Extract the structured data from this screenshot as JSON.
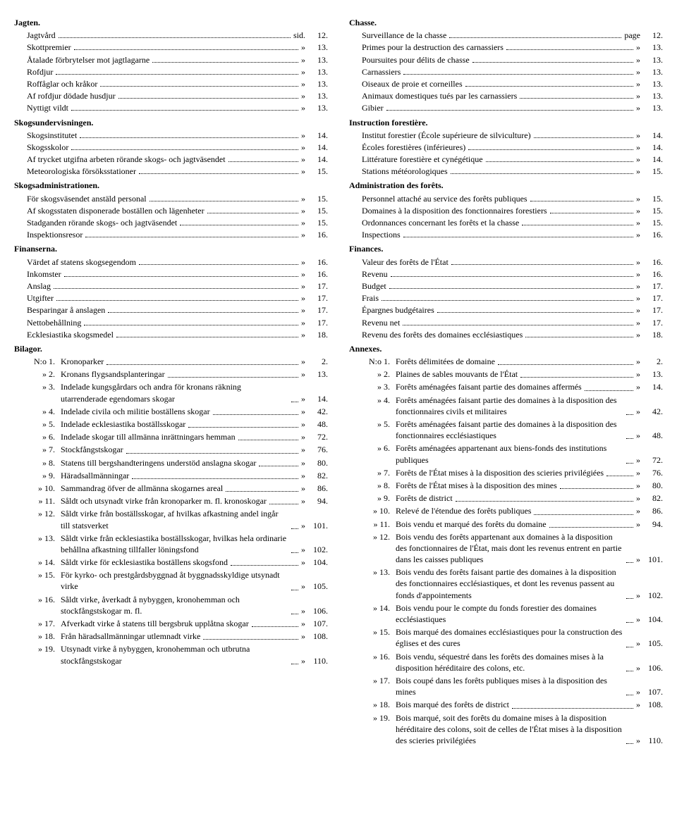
{
  "left": {
    "sections": [
      {
        "type": "heading",
        "text": "Jagten."
      },
      {
        "type": "entry",
        "indent": 1,
        "label": "Jagtvård",
        "unit": "sid.",
        "page": "12."
      },
      {
        "type": "entry",
        "indent": 1,
        "label": "Skottpremier",
        "unit": "»",
        "page": "13."
      },
      {
        "type": "entry",
        "indent": 1,
        "label": "Åtalade förbrytelser mot jagtlagarne",
        "unit": "»",
        "page": "13."
      },
      {
        "type": "entry",
        "indent": 1,
        "label": "Rofdjur",
        "unit": "»",
        "page": "13."
      },
      {
        "type": "entry",
        "indent": 1,
        "label": "Roffåglar och kråkor",
        "unit": "»",
        "page": "13."
      },
      {
        "type": "entry",
        "indent": 1,
        "label": "Af rofdjur dödade husdjur",
        "unit": "»",
        "page": "13."
      },
      {
        "type": "entry",
        "indent": 1,
        "label": "Nyttigt vildt",
        "unit": "»",
        "page": "13."
      },
      {
        "type": "heading",
        "text": "Skogsundervisningen."
      },
      {
        "type": "entry",
        "indent": 1,
        "label": "Skogsinstitutet",
        "unit": "»",
        "page": "14."
      },
      {
        "type": "entry",
        "indent": 1,
        "label": "Skogsskolor",
        "unit": "»",
        "page": "14."
      },
      {
        "type": "entry",
        "indent": 1,
        "label": "Af trycket utgifna arbeten rörande skogs- och jagtväsendet",
        "unit": "»",
        "page": "14."
      },
      {
        "type": "entry",
        "indent": 1,
        "label": "Meteorologiska försöksstationer",
        "unit": "»",
        "page": "15."
      },
      {
        "type": "heading",
        "text": "Skogsadministrationen."
      },
      {
        "type": "entry",
        "indent": 1,
        "label": "För skogsväsendet anstäld personal",
        "unit": "»",
        "page": "15."
      },
      {
        "type": "entry",
        "indent": 1,
        "label": "Af skogsstaten disponerade boställen och lägenheter",
        "unit": "»",
        "page": "15."
      },
      {
        "type": "entry",
        "indent": 1,
        "label": "Stadganden rörande skogs- och jagtväsendet",
        "unit": "»",
        "page": "15."
      },
      {
        "type": "entry",
        "indent": 1,
        "label": "Inspektionsresor",
        "unit": "»",
        "page": "16."
      },
      {
        "type": "heading",
        "text": "Finanserna."
      },
      {
        "type": "entry",
        "indent": 1,
        "label": "Värdet af statens skogsegendom",
        "unit": "»",
        "page": "16."
      },
      {
        "type": "entry",
        "indent": 1,
        "label": "Inkomster",
        "unit": "»",
        "page": "16."
      },
      {
        "type": "entry",
        "indent": 1,
        "label": "Anslag",
        "unit": "»",
        "page": "17."
      },
      {
        "type": "entry",
        "indent": 1,
        "label": "Utgifter",
        "unit": "»",
        "page": "17."
      },
      {
        "type": "entry",
        "indent": 1,
        "label": "Besparingar å anslagen",
        "unit": "»",
        "page": "17."
      },
      {
        "type": "entry",
        "indent": 1,
        "label": "Nettobehållning",
        "unit": "»",
        "page": "17."
      },
      {
        "type": "entry",
        "indent": 1,
        "label": "Ecklesiastika skogsmedel",
        "unit": "»",
        "page": "18."
      }
    ],
    "bilagor_heading": "Bilagor.",
    "bilagor": [
      {
        "num": "N:o 1.",
        "text": "Kronoparker",
        "unit": "»",
        "page": "2."
      },
      {
        "num": "» 2.",
        "text": "Kronans flygsandsplanteringar",
        "unit": "»",
        "page": "13."
      },
      {
        "num": "» 3.",
        "text": "Indelade kungsgårdars och andra för kronans räkning utarrenderade egendomars skogar",
        "unit": "»",
        "page": "14."
      },
      {
        "num": "» 4.",
        "text": "Indelade civila och militie boställens skogar",
        "unit": "»",
        "page": "42."
      },
      {
        "num": "» 5.",
        "text": "Indelade ecklesiastika boställsskogar",
        "unit": "»",
        "page": "48."
      },
      {
        "num": "» 6.",
        "text": "Indelade skogar till allmänna inrättningars hemman",
        "unit": "»",
        "page": "72."
      },
      {
        "num": "» 7.",
        "text": "Stockfångstskogar",
        "unit": "»",
        "page": "76."
      },
      {
        "num": "» 8.",
        "text": "Statens till bergshandteringens understöd anslagna skogar",
        "unit": "»",
        "page": "80."
      },
      {
        "num": "» 9.",
        "text": "Häradsallmänningar",
        "unit": "»",
        "page": "82."
      },
      {
        "num": "» 10.",
        "text": "Sammandrag öfver de allmänna skogarnes areal",
        "unit": "»",
        "page": "86."
      },
      {
        "num": "» 11.",
        "text": "Såldt och utsynadt virke från kronoparker m. fl. kronoskogar",
        "unit": "»",
        "page": "94."
      },
      {
        "num": "» 12.",
        "text": "Såldt virke från boställsskogar, af hvilkas afkastning andel ingår till statsverket",
        "unit": "»",
        "page": "101."
      },
      {
        "num": "» 13.",
        "text": "Såldt virke från ecklesiastika boställsskogar, hvilkas hela ordinarie behållna afkastning tillfaller löningsfond",
        "unit": "»",
        "page": "102."
      },
      {
        "num": "» 14.",
        "text": "Såldt virke för ecklesiastika boställens skogsfond",
        "unit": "»",
        "page": "104."
      },
      {
        "num": "» 15.",
        "text": "För kyrko- och prestgårdsbyggnad åt byggnadsskyldige utsynadt virke",
        "unit": "»",
        "page": "105."
      },
      {
        "num": "» 16.",
        "text": "Såldt virke, åverkadt å nybyggen, kronohemman och stockfångstskogar m. fl.",
        "unit": "»",
        "page": "106."
      },
      {
        "num": "» 17.",
        "text": "Afverkadt virke å statens till bergsbruk upplåtna skogar",
        "unit": "»",
        "page": "107."
      },
      {
        "num": "» 18.",
        "text": "Från häradsallmänningar utlemnadt virke",
        "unit": "»",
        "page": "108."
      },
      {
        "num": "» 19.",
        "text": "Utsynadt virke å nybyggen, kronohemman och utbrutna stockfångstskogar",
        "unit": "»",
        "page": "110."
      }
    ]
  },
  "right": {
    "sections": [
      {
        "type": "heading",
        "text": "Chasse."
      },
      {
        "type": "entry",
        "indent": 1,
        "label": "Surveillance de la chasse",
        "unit": "page",
        "page": "12."
      },
      {
        "type": "entry",
        "indent": 1,
        "label": "Primes pour la destruction des carnassiers",
        "unit": "»",
        "page": "13."
      },
      {
        "type": "entry",
        "indent": 1,
        "label": "Poursuites pour délits de chasse",
        "unit": "»",
        "page": "13."
      },
      {
        "type": "entry",
        "indent": 1,
        "label": "Carnassiers",
        "unit": "»",
        "page": "13."
      },
      {
        "type": "entry",
        "indent": 1,
        "label": "Oiseaux de proie et corneilles",
        "unit": "»",
        "page": "13."
      },
      {
        "type": "entry",
        "indent": 1,
        "label": "Animaux domestiques tués par les carnassiers",
        "unit": "»",
        "page": "13."
      },
      {
        "type": "entry",
        "indent": 1,
        "label": "Gibier",
        "unit": "»",
        "page": "13."
      },
      {
        "type": "heading",
        "text": "Instruction forestière."
      },
      {
        "type": "entry",
        "indent": 1,
        "label": "Institut forestier (École supérieure de silviculture)",
        "unit": "»",
        "page": "14."
      },
      {
        "type": "entry",
        "indent": 1,
        "label": "Écoles forestières (inférieures)",
        "unit": "»",
        "page": "14."
      },
      {
        "type": "entry",
        "indent": 1,
        "label": "Littérature forestière et cynégétique",
        "unit": "»",
        "page": "14."
      },
      {
        "type": "entry",
        "indent": 1,
        "label": "Stations météorologiques",
        "unit": "»",
        "page": "15."
      },
      {
        "type": "heading",
        "text": "Administration des forêts."
      },
      {
        "type": "entry",
        "indent": 1,
        "label": "Personnel attaché au service des forêts publiques",
        "unit": "»",
        "page": "15."
      },
      {
        "type": "entry",
        "indent": 1,
        "label": "Domaines à la disposition des fonctionnaires forestiers",
        "unit": "»",
        "page": "15."
      },
      {
        "type": "entry",
        "indent": 1,
        "label": "Ordonnances concernant les forêts et la chasse",
        "unit": "»",
        "page": "15."
      },
      {
        "type": "entry",
        "indent": 1,
        "label": "Inspections",
        "unit": "»",
        "page": "16."
      },
      {
        "type": "heading",
        "text": "Finances."
      },
      {
        "type": "entry",
        "indent": 1,
        "label": "Valeur des forêts de l'État",
        "unit": "»",
        "page": "16."
      },
      {
        "type": "entry",
        "indent": 1,
        "label": "Revenu",
        "unit": "»",
        "page": "16."
      },
      {
        "type": "entry",
        "indent": 1,
        "label": "Budget",
        "unit": "»",
        "page": "17."
      },
      {
        "type": "entry",
        "indent": 1,
        "label": "Frais",
        "unit": "»",
        "page": "17."
      },
      {
        "type": "entry",
        "indent": 1,
        "label": "Épargnes budgétaires",
        "unit": "»",
        "page": "17."
      },
      {
        "type": "entry",
        "indent": 1,
        "label": "Revenu net",
        "unit": "»",
        "page": "17."
      },
      {
        "type": "entry",
        "indent": 1,
        "label": "Revenu des forêts des domaines ecclésiastiques",
        "unit": "»",
        "page": "18."
      }
    ],
    "annexes_heading": "Annexes.",
    "annexes": [
      {
        "num": "N:o 1.",
        "text": "Forêts délimitées de domaine",
        "unit": "»",
        "page": "2."
      },
      {
        "num": "» 2.",
        "text": "Plaines de sables mouvants de l'État",
        "unit": "»",
        "page": "13."
      },
      {
        "num": "» 3.",
        "text": "Forêts aménagées faisant partie des domaines affermés",
        "unit": "»",
        "page": "14."
      },
      {
        "num": "» 4.",
        "text": "Forêts aménagées faisant partie des domaines à la disposition des fonctionnaires civils et militaires",
        "unit": "»",
        "page": "42."
      },
      {
        "num": "» 5.",
        "text": "Forêts aménagées faisant partie des domaines à la disposition des fonctionnaires ecclésiastiques",
        "unit": "»",
        "page": "48."
      },
      {
        "num": "» 6.",
        "text": "Forêts aménagées appartenant aux biens-fonds des institutions publiques",
        "unit": "»",
        "page": "72."
      },
      {
        "num": "» 7.",
        "text": "Forêts de l'État mises à la disposition des scieries privilégiées",
        "unit": "»",
        "page": "76."
      },
      {
        "num": "» 8.",
        "text": "Forêts de l'État mises à la disposition des mines",
        "unit": "»",
        "page": "80."
      },
      {
        "num": "» 9.",
        "text": "Forêts de district",
        "unit": "»",
        "page": "82."
      },
      {
        "num": "» 10.",
        "text": "Relevé de l'étendue des forêts publiques",
        "unit": "»",
        "page": "86."
      },
      {
        "num": "» 11.",
        "text": "Bois vendu et marqué des forêts du domaine",
        "unit": "»",
        "page": "94."
      },
      {
        "num": "» 12.",
        "text": "Bois vendu des forêts appartenant aux domaines à la disposition des fonctionnaires de l'État, mais dont les revenus entrent en partie dans les caisses publiques",
        "unit": "»",
        "page": "101."
      },
      {
        "num": "» 13.",
        "text": "Bois vendu des forêts faisant partie des domaines à la disposition des fonctionnaires ecclésiastiques, et dont les revenus passent au fonds d'appointements",
        "unit": "»",
        "page": "102."
      },
      {
        "num": "» 14.",
        "text": "Bois vendu pour le compte du fonds forestier des domaines ecclésiastiques",
        "unit": "»",
        "page": "104."
      },
      {
        "num": "» 15.",
        "text": "Bois marqué des domaines ecclésiastiques pour la construction des églises et des cures",
        "unit": "»",
        "page": "105."
      },
      {
        "num": "» 16.",
        "text": "Bois vendu, séquestré dans les forêts des domaines mises à la disposition héréditaire des colons, etc.",
        "unit": "»",
        "page": "106."
      },
      {
        "num": "» 17.",
        "text": "Bois coupé dans les forêts publiques mises à la disposition des mines",
        "unit": "»",
        "page": "107."
      },
      {
        "num": "» 18.",
        "text": "Bois marqué des forêts de district",
        "unit": "»",
        "page": "108."
      },
      {
        "num": "» 19.",
        "text": "Bois marqué, soit des forêts du domaine mises à la disposition héréditaire des colons, soit de celles de l'État mises à la disposition des scieries privilégiées",
        "unit": "»",
        "page": "110."
      }
    ]
  }
}
